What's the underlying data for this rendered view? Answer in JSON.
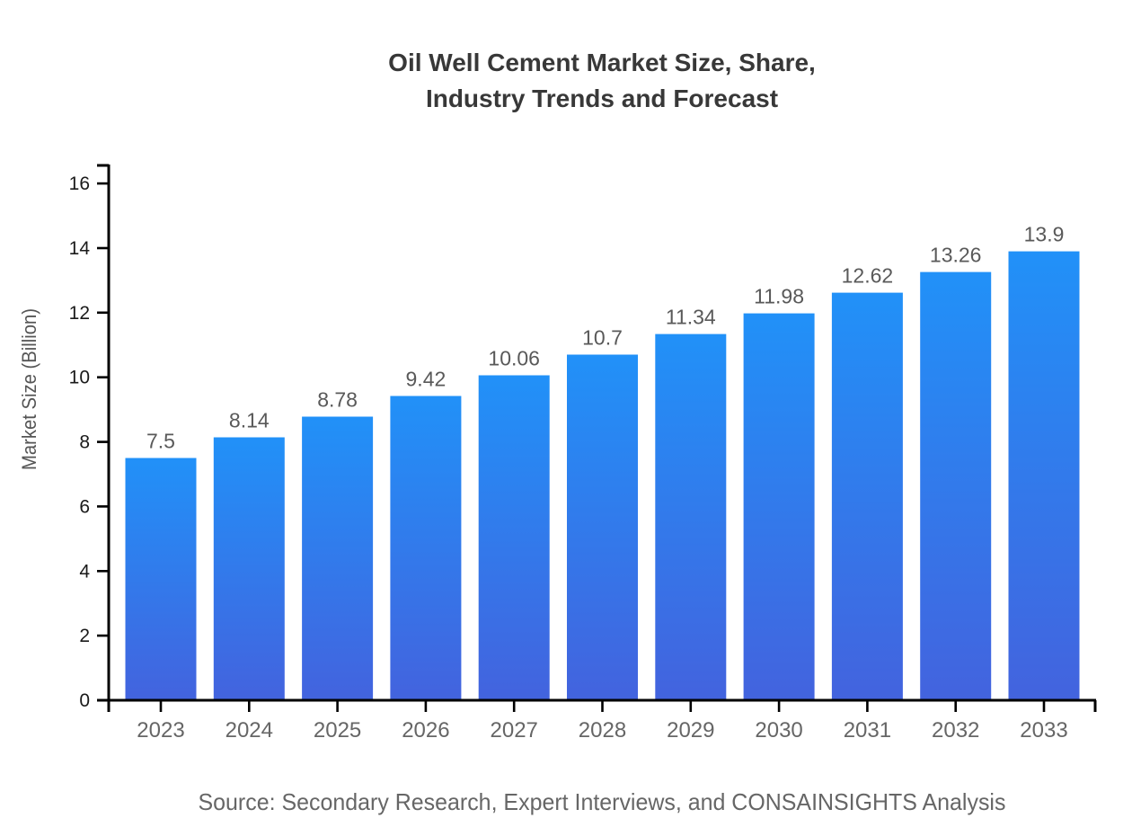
{
  "header": {
    "title_line1": "Oil Well Cement Market Size, Share,",
    "title_line2": "Industry Trends and Forecast"
  },
  "chart_data": {
    "type": "bar",
    "title": "Oil Well Cement Market Size, Share, Industry Trends and Forecast",
    "categories": [
      "2023",
      "2024",
      "2025",
      "2026",
      "2027",
      "2028",
      "2029",
      "2030",
      "2031",
      "2032",
      "2033"
    ],
    "values": [
      7.5,
      8.14,
      8.78,
      9.42,
      10.06,
      10.7,
      11.34,
      11.98,
      12.62,
      13.26,
      13.9
    ],
    "value_labels": [
      "7.5",
      "8.14",
      "8.78",
      "9.42",
      "10.06",
      "10.7",
      "11.34",
      "11.98",
      "12.62",
      "13.26",
      "13.9"
    ],
    "xlabel": "",
    "ylabel": "Market Size (Billion)",
    "yticks": [
      0,
      2,
      4,
      6,
      8,
      10,
      12,
      14,
      16
    ],
    "ylim": [
      0,
      16.6
    ],
    "grid": false,
    "legend": false,
    "colors": {
      "bar_gradient_top": "#2191F8",
      "bar_gradient_bottom": "#4363DE",
      "axis": "#000000",
      "ytick_label": "#1a1a1a",
      "xtick_label": "#666666",
      "value_label": "#595959",
      "title": "#383838",
      "ylabel": "#555555",
      "source": "#666666"
    },
    "source": "Source: Secondary Research, Expert Interviews, and CONSAINSIGHTS Analysis"
  }
}
